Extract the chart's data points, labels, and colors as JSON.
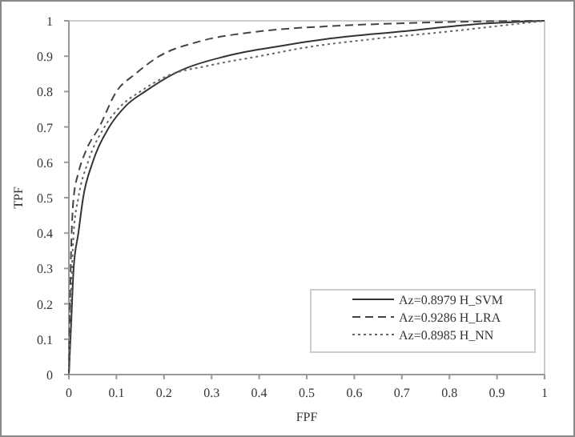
{
  "chart_data": {
    "type": "line",
    "xlabel": "FPF",
    "ylabel": "TPF",
    "xlim": [
      0,
      1
    ],
    "ylim": [
      0,
      1
    ],
    "xticks": [
      0,
      0.1,
      0.2,
      0.3,
      0.4,
      0.5,
      0.6,
      0.7,
      0.8,
      0.9,
      1
    ],
    "yticks": [
      0,
      0.1,
      0.2,
      0.3,
      0.4,
      0.5,
      0.6,
      0.7,
      0.8,
      0.9,
      1
    ],
    "legend": "bottom right",
    "grid": false,
    "marker": "none",
    "series": [
      {
        "name": "Az=0.8979 H_SVM",
        "color": "#333333",
        "line_style": "solid",
        "x": [
          0,
          0.005,
          0.01,
          0.02,
          0.03,
          0.05,
          0.085,
          0.12,
          0.16,
          0.22,
          0.33,
          0.45,
          0.55,
          0.7,
          0.85,
          1
        ],
        "values": [
          0,
          0.15,
          0.3,
          0.4,
          0.5,
          0.6,
          0.7,
          0.76,
          0.8,
          0.85,
          0.9,
          0.93,
          0.95,
          0.97,
          0.99,
          1
        ]
      },
      {
        "name": "Az=0.9286 H_LRA",
        "color": "#444444",
        "line_style": "dashed",
        "x": [
          0,
          0.003,
          0.01,
          0.02,
          0.035,
          0.064,
          0.1,
          0.14,
          0.19,
          0.27,
          0.4,
          0.55,
          0.7,
          0.85,
          1
        ],
        "values": [
          0,
          0.25,
          0.5,
          0.57,
          0.63,
          0.7,
          0.8,
          0.85,
          0.9,
          0.94,
          0.97,
          0.985,
          0.993,
          0.998,
          1
        ]
      },
      {
        "name": "Az=0.8985 H_NN",
        "color": "#666666",
        "line_style": "dotted",
        "x": [
          0,
          0.004,
          0.01,
          0.02,
          0.04,
          0.075,
          0.11,
          0.15,
          0.2,
          0.3,
          0.4,
          0.5,
          0.65,
          0.8,
          0.9,
          1
        ],
        "values": [
          0,
          0.2,
          0.4,
          0.5,
          0.6,
          0.7,
          0.76,
          0.8,
          0.84,
          0.875,
          0.9,
          0.925,
          0.95,
          0.97,
          0.985,
          1
        ]
      }
    ]
  }
}
